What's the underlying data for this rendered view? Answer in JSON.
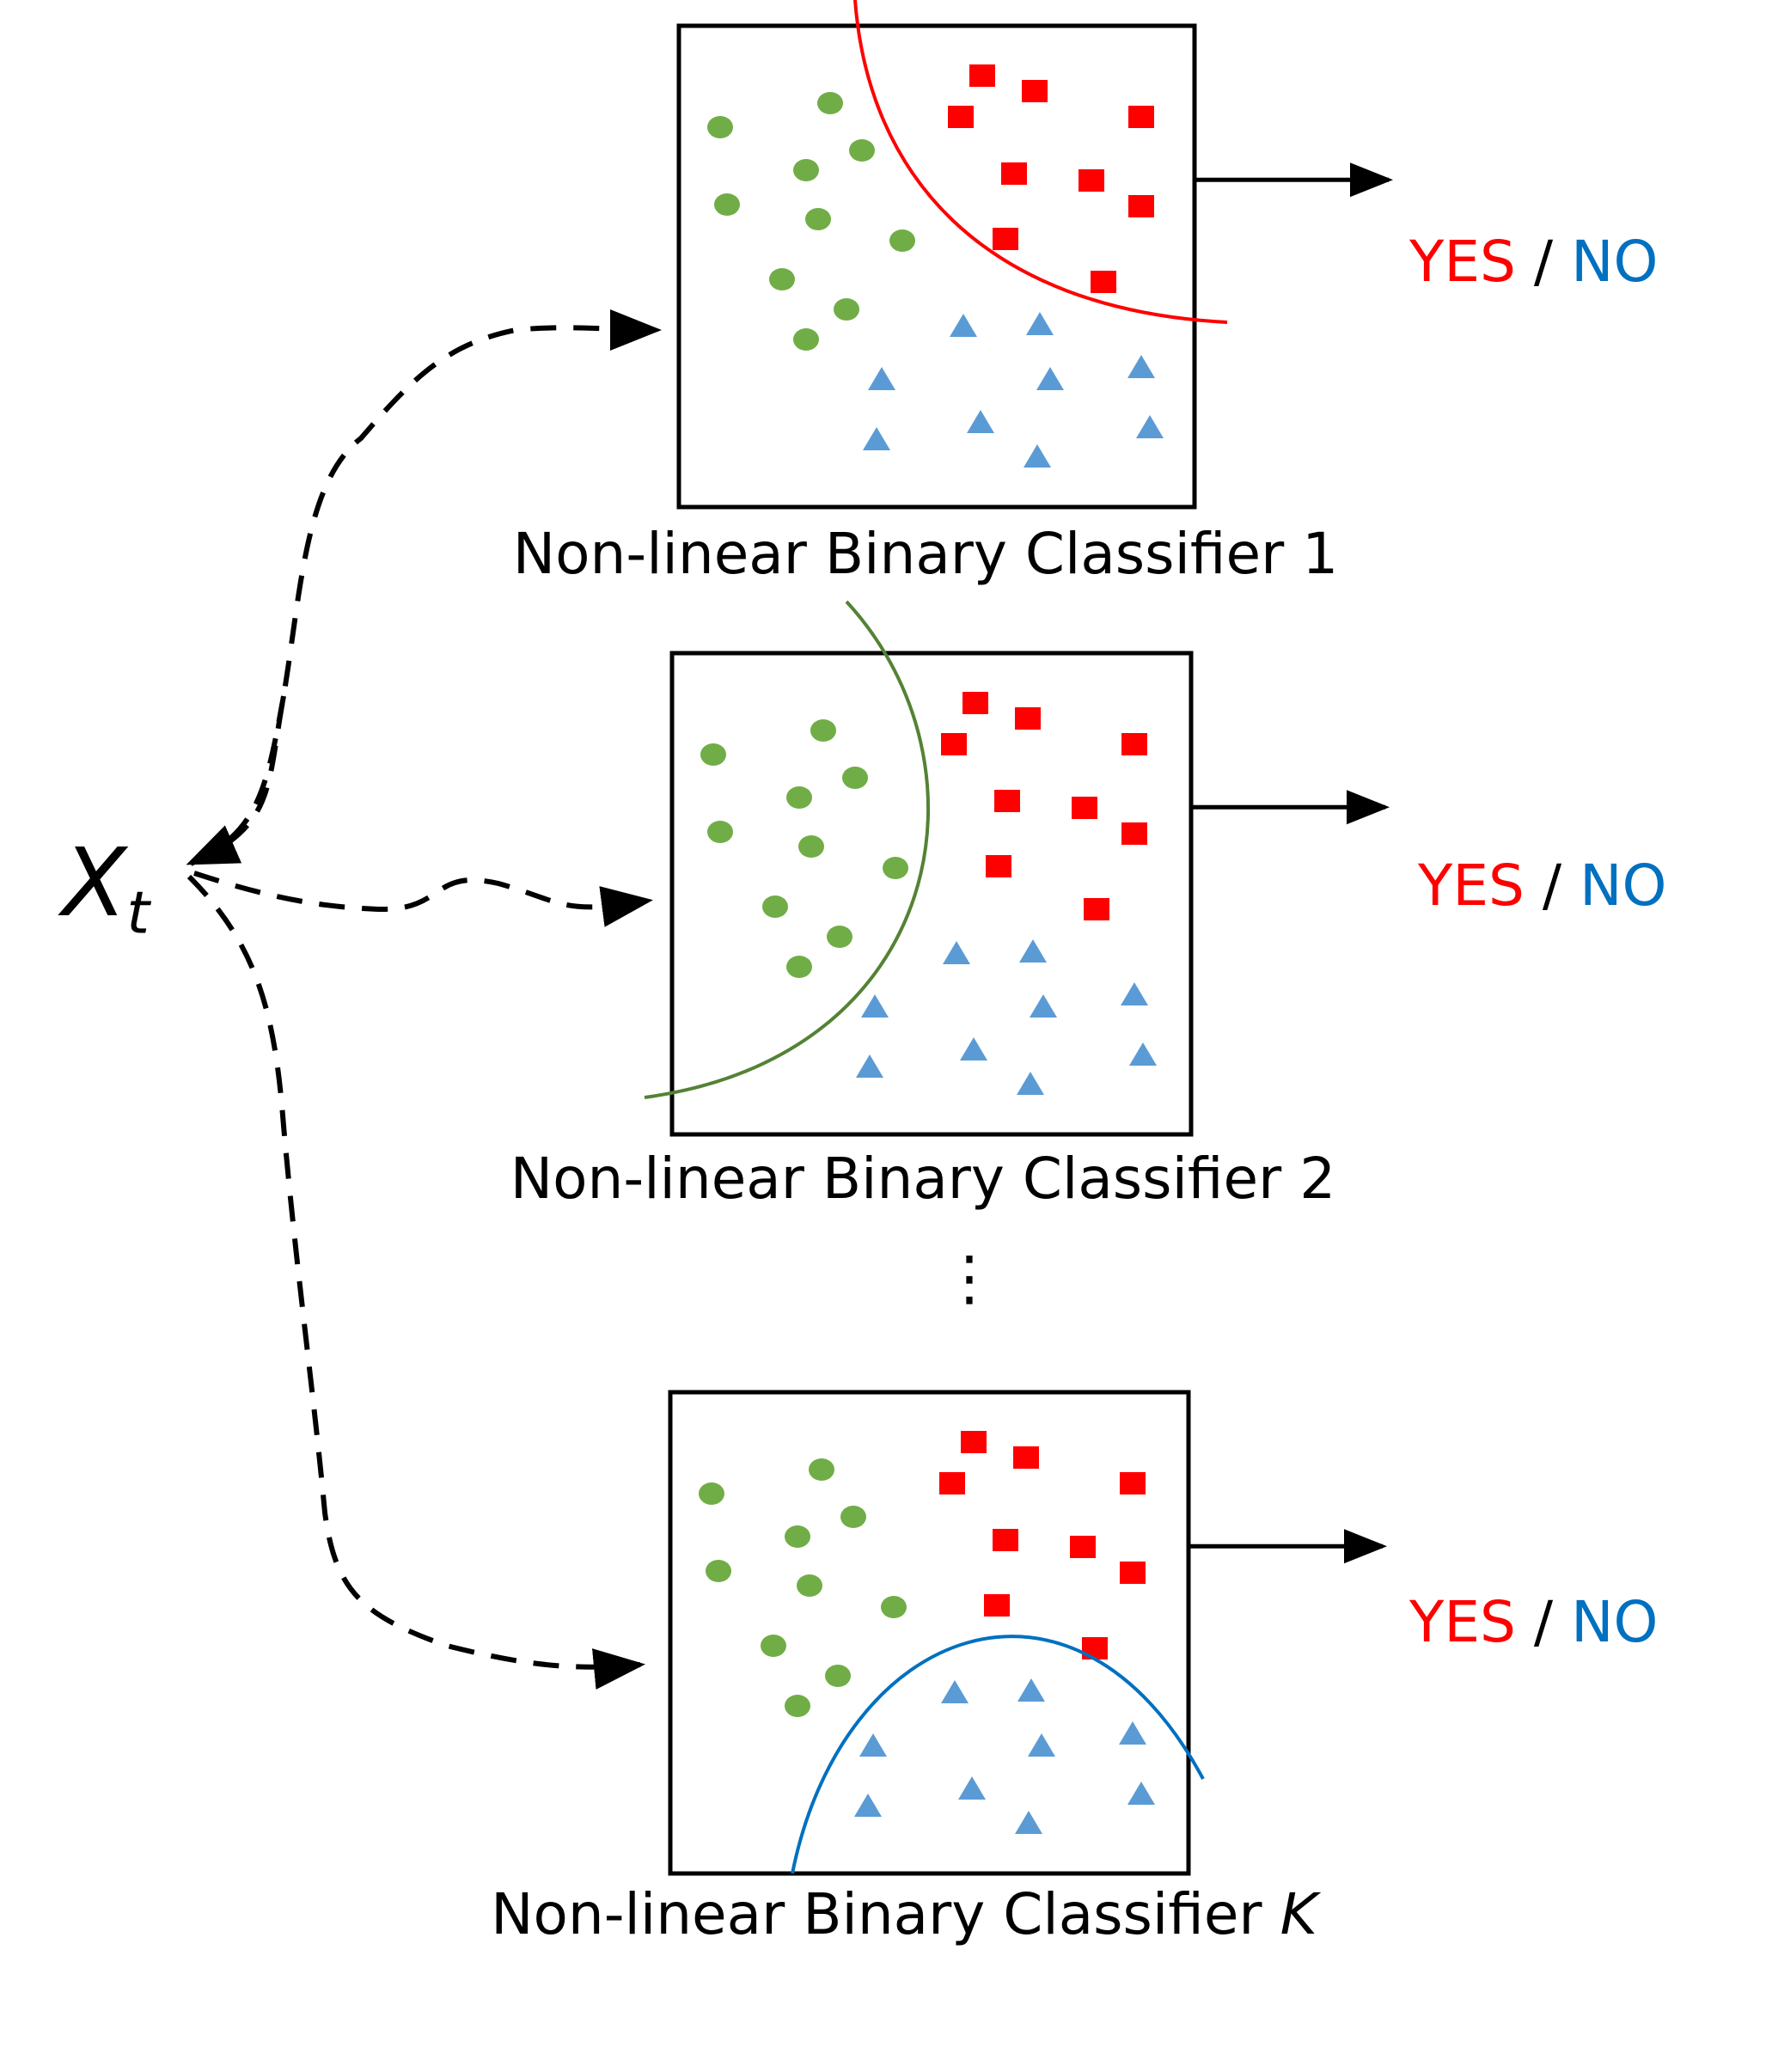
{
  "input": {
    "symbol": "X",
    "subscript": "t"
  },
  "classifiers": [
    {
      "caption": "Non-linear Binary Classifier 1",
      "caption_suffix": "",
      "boundary_color": "#ff0000"
    },
    {
      "caption": "Non-linear Binary Classifier 2",
      "caption_suffix": "",
      "boundary_color": "#548235"
    },
    {
      "caption": "Non-linear Binary Classifier ",
      "caption_suffix": "K",
      "boundary_color": "#0070c0"
    }
  ],
  "output": {
    "yes": "YES",
    "separator": " / ",
    "no": "NO"
  },
  "ellipsis": "⋮",
  "colors": {
    "class_circle": "#70ad47",
    "class_square": "#ff0000",
    "class_triangle": "#5b9bd5",
    "yes_text": "#ff0000",
    "no_text": "#0070c0"
  }
}
